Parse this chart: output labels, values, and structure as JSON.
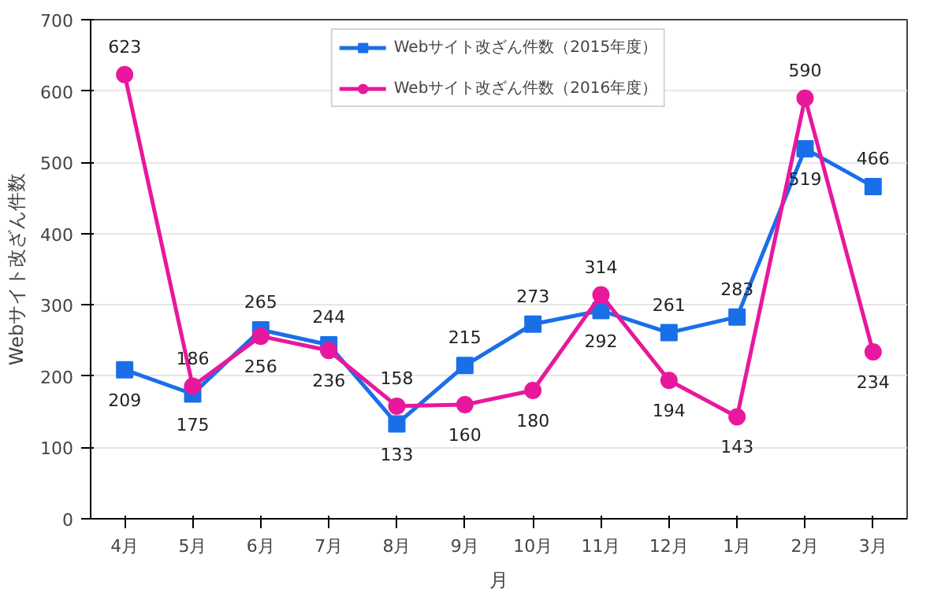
{
  "chart_data": {
    "type": "line",
    "xlabel": "月",
    "ylabel": "Webサイト改ざん件数",
    "categories": [
      "4月",
      "5月",
      "6月",
      "7月",
      "8月",
      "9月",
      "10月",
      "11月",
      "12月",
      "1月",
      "2月",
      "3月"
    ],
    "series": [
      {
        "name": "Webサイト改ざん件数（2015年度）",
        "color": "#1a6fe8",
        "marker": "square",
        "values": [
          209,
          175,
          265,
          244,
          133,
          215,
          273,
          292,
          261,
          283,
          519,
          466
        ]
      },
      {
        "name": "Webサイト改ざん件数（2016年度）",
        "color": "#e8189c",
        "marker": "circle",
        "values": [
          623,
          186,
          256,
          236,
          158,
          160,
          180,
          314,
          194,
          143,
          590,
          234
        ]
      }
    ],
    "ylim": [
      0,
      700
    ],
    "yticks": [
      0,
      100,
      200,
      300,
      400,
      500,
      600,
      700
    ],
    "grid": "y",
    "legend": "top",
    "data_labels": true,
    "line_style": "solid"
  }
}
